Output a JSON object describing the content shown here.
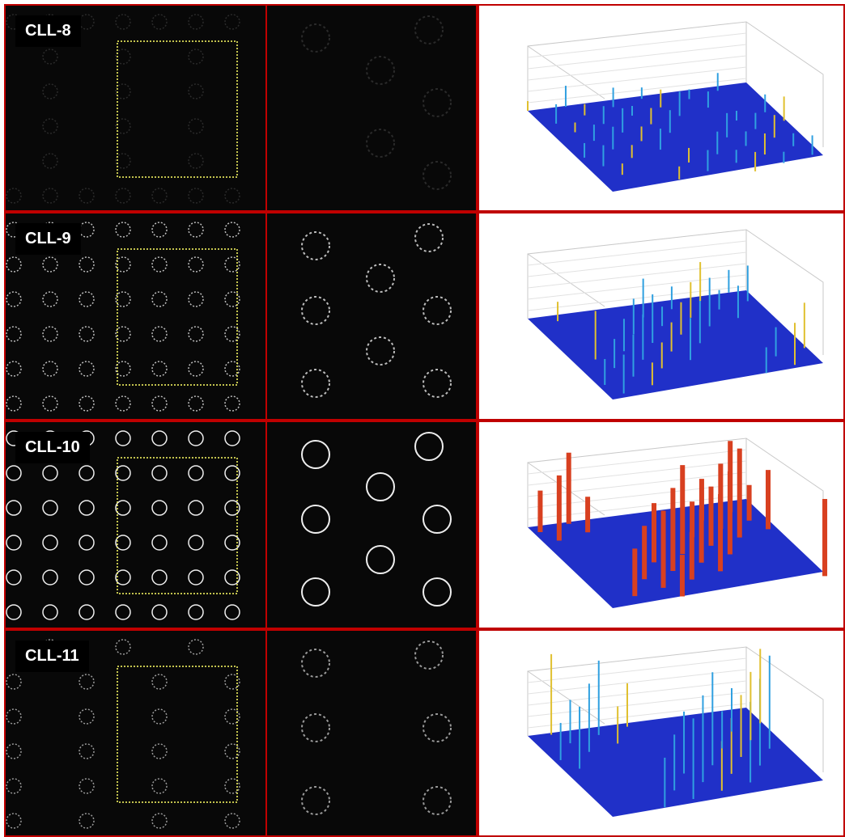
{
  "panels": [
    {
      "label": "CLL-8"
    },
    {
      "label": "CLL-9"
    },
    {
      "label": "CLL-10"
    },
    {
      "label": "CLL-11"
    }
  ]
}
